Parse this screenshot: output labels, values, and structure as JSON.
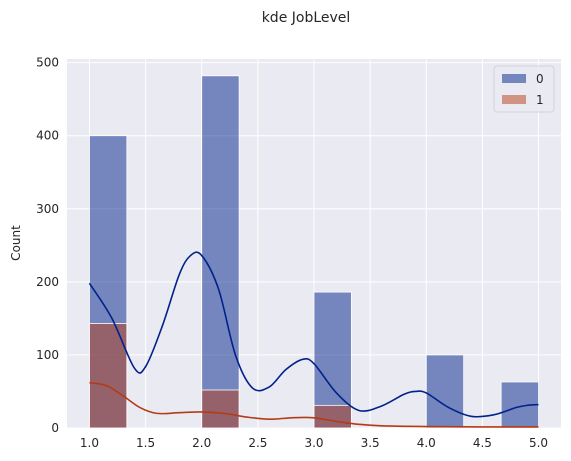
{
  "chart_data": {
    "type": "bar",
    "title": "kde JobLevel",
    "xlabel": "",
    "ylabel": "Count",
    "xlim": [
      0.8,
      5.2
    ],
    "ylim": [
      0,
      505
    ],
    "xticks": [
      "1.0",
      "1.5",
      "2.0",
      "2.5",
      "3.0",
      "3.5",
      "4.0",
      "4.5",
      "5.0"
    ],
    "yticks": [
      "0",
      "100",
      "200",
      "300",
      "400",
      "500"
    ],
    "grid": true,
    "legend_position": "top-right",
    "bin_width": 0.333,
    "series": [
      {
        "name": "0",
        "color": "#00228a",
        "bars": [
          {
            "x": 1.0,
            "count": 400
          },
          {
            "x": 2.0,
            "count": 482
          },
          {
            "x": 3.0,
            "count": 186
          },
          {
            "x": 4.0,
            "count": 100
          },
          {
            "x": 4.667,
            "count": 63
          }
        ],
        "kde": [
          [
            1.0,
            198
          ],
          [
            1.2,
            150
          ],
          [
            1.4,
            82
          ],
          [
            1.5,
            84
          ],
          [
            1.65,
            140
          ],
          [
            1.8,
            210
          ],
          [
            1.9,
            236
          ],
          [
            2.0,
            236
          ],
          [
            2.15,
            190
          ],
          [
            2.3,
            100
          ],
          [
            2.45,
            55
          ],
          [
            2.6,
            56
          ],
          [
            2.75,
            80
          ],
          [
            2.9,
            94
          ],
          [
            3.0,
            88
          ],
          [
            3.2,
            48
          ],
          [
            3.4,
            24
          ],
          [
            3.6,
            30
          ],
          [
            3.8,
            46
          ],
          [
            3.9,
            50
          ],
          [
            4.0,
            48
          ],
          [
            4.2,
            28
          ],
          [
            4.4,
            16
          ],
          [
            4.6,
            18
          ],
          [
            4.8,
            28
          ],
          [
            4.9,
            31
          ],
          [
            5.0,
            32
          ]
        ]
      },
      {
        "name": "1",
        "color": "#b53b16",
        "bars": [
          {
            "x": 1.0,
            "count": 143
          },
          {
            "x": 2.0,
            "count": 52
          },
          {
            "x": 3.0,
            "count": 31
          }
        ],
        "kde": [
          [
            1.0,
            62
          ],
          [
            1.15,
            58
          ],
          [
            1.3,
            44
          ],
          [
            1.45,
            28
          ],
          [
            1.6,
            20
          ],
          [
            1.8,
            21
          ],
          [
            2.0,
            22
          ],
          [
            2.2,
            20
          ],
          [
            2.4,
            15
          ],
          [
            2.6,
            12
          ],
          [
            2.8,
            14
          ],
          [
            3.0,
            14
          ],
          [
            3.2,
            9
          ],
          [
            3.4,
            5
          ],
          [
            3.6,
            3
          ],
          [
            4.0,
            2
          ],
          [
            4.5,
            1.5
          ],
          [
            5.0,
            1.5
          ]
        ]
      }
    ]
  }
}
